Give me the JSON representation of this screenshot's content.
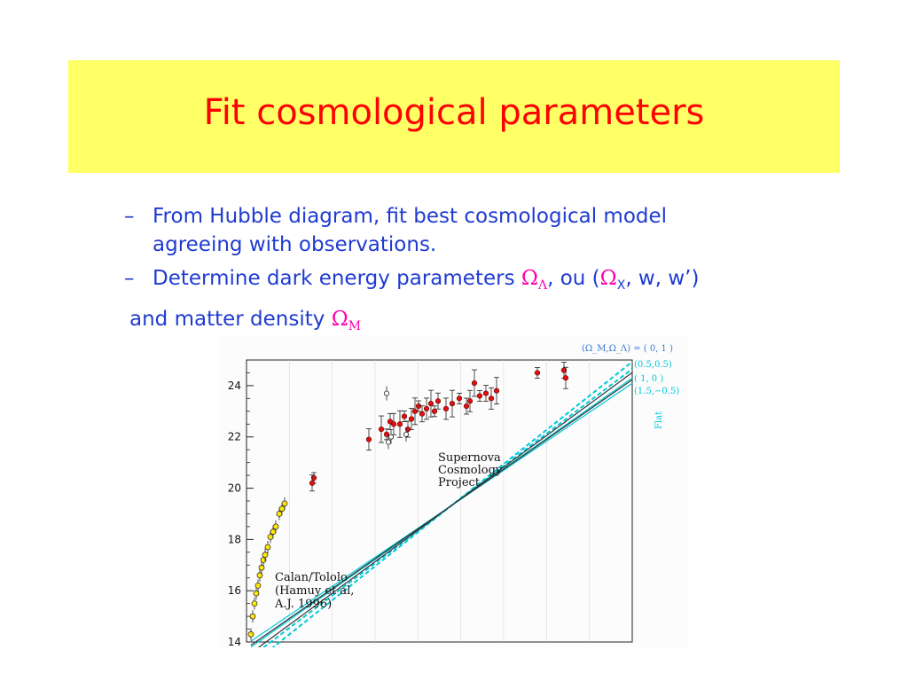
{
  "slide": {
    "title": "Fit cosmological parameters",
    "bullets": [
      {
        "dash": "–",
        "line1": "From Hubble diagram, fit best cosmological model",
        "line2": "agreeing with observations."
      },
      {
        "dash": "–",
        "text": "Determine dark energy parameters ",
        "sym1": "Ω",
        "sym1_sub": "Λ",
        "mid": ", ou (",
        "sym2": "Ω",
        "sym2_sub": "X",
        "end": ", w, w’)"
      }
    ],
    "continuation": {
      "text": "and matter density ",
      "sym": "Ω",
      "sym_sub": "M"
    },
    "colors": {
      "title": "#ff0000",
      "title_bg": "#ffff66",
      "text": "#1f3bd1",
      "symbol": "#ff00aa",
      "model": "#00c8d8"
    }
  },
  "chart_data": {
    "type": "scatter",
    "y_ticks": [
      "24",
      "22",
      "20",
      "18",
      "16",
      "14"
    ],
    "ylim": [
      14,
      25
    ],
    "legend_header": "(Ω_M,Ω_Λ) = ( 0,   1 )",
    "legend_entries": [
      "(0.5,0.5)",
      "( 1,    0 )",
      "(1.5,−0.5)"
    ],
    "flat_label": "Flat",
    "annotations": [
      {
        "lines": [
          "Supernova",
          "Cosmology",
          "Project"
        ]
      },
      {
        "lines": [
          "Calan/Tololo",
          "(Hamuy et al,",
          "A.J. 1996)"
        ]
      }
    ]
  }
}
